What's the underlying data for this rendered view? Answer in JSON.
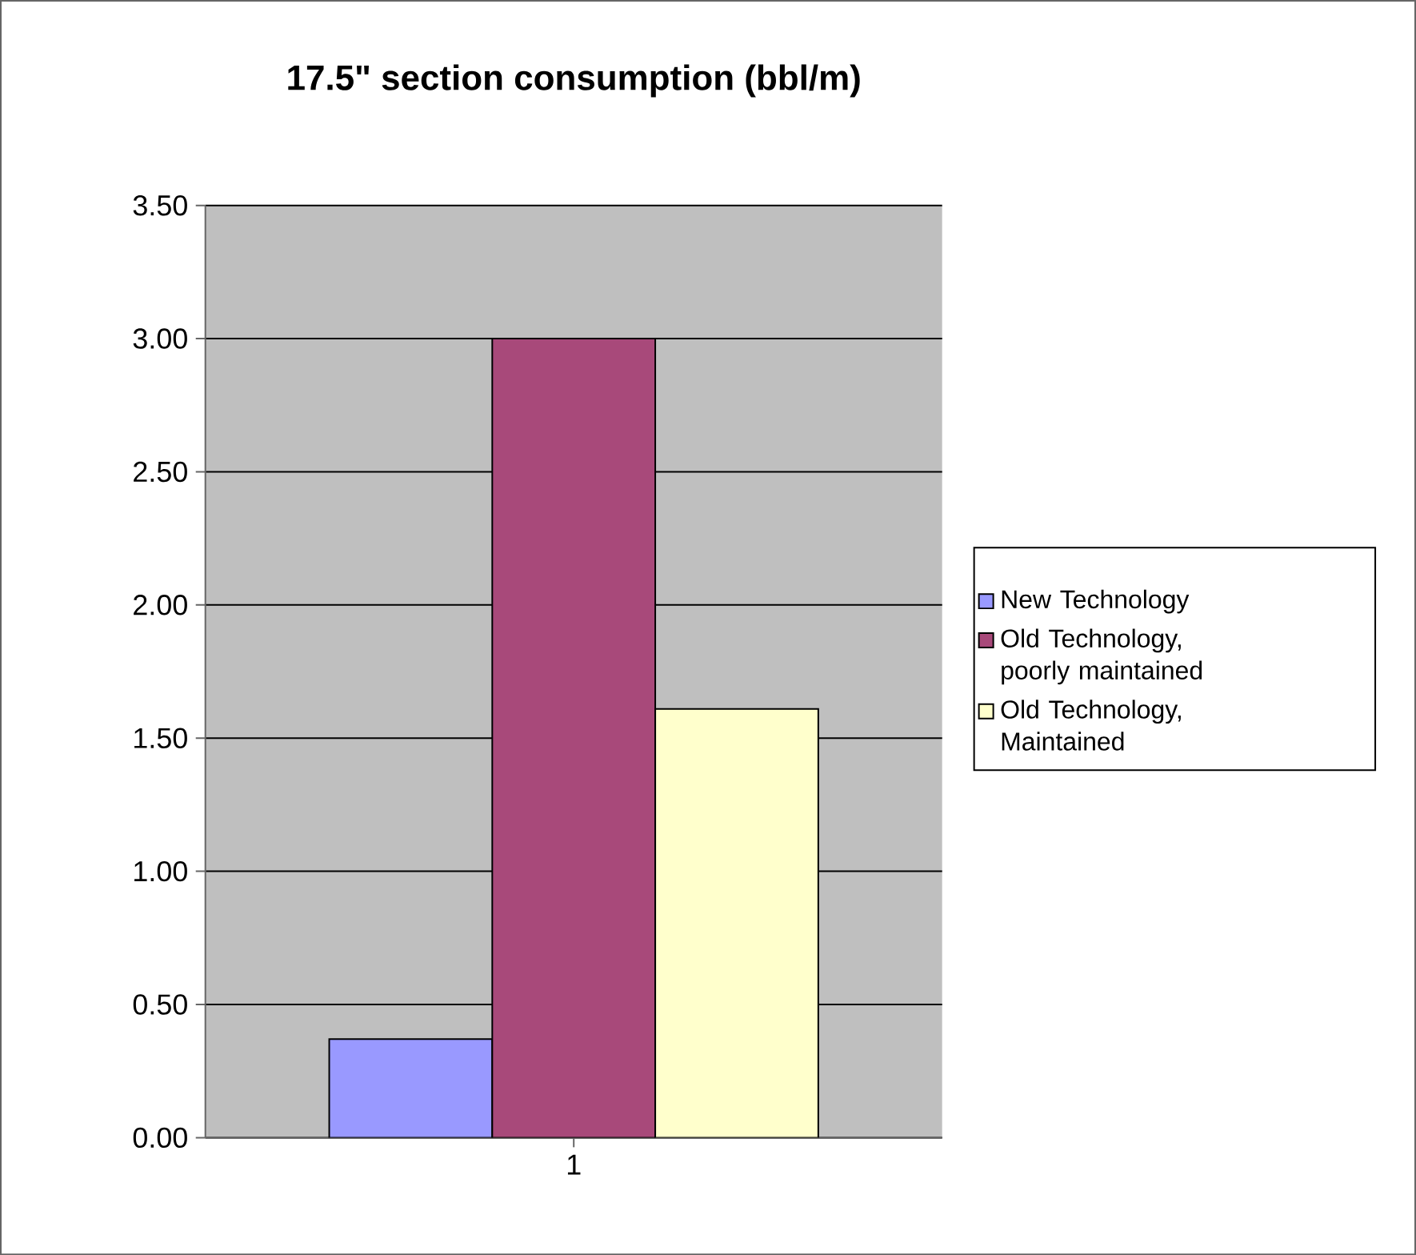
{
  "chart_data": {
    "type": "bar",
    "title": "17.5\" section consumption (bbl/m)",
    "categories": [
      "1"
    ],
    "series": [
      {
        "name": "New Technology",
        "color": "#9999ff",
        "values": [
          0.37
        ]
      },
      {
        "name": "Old Technology, poorly maintained",
        "color": "#a8497a",
        "values": [
          3.0
        ]
      },
      {
        "name": "Old Technology, Maintained",
        "color": "#ffffcc",
        "values": [
          1.61
        ]
      }
    ],
    "ylim": [
      0,
      3.5
    ],
    "yticks": [
      {
        "value": 0,
        "label": "0.00"
      },
      {
        "value": 0.5,
        "label": "0.50"
      },
      {
        "value": 1,
        "label": "1.00"
      },
      {
        "value": 1.5,
        "label": "1.50"
      },
      {
        "value": 2,
        "label": "2.00"
      },
      {
        "value": 2.5,
        "label": "2.50"
      },
      {
        "value": 3,
        "label": "3.00"
      },
      {
        "value": 3.5,
        "label": "3.50"
      }
    ],
    "grid": "y",
    "legend": "right"
  }
}
